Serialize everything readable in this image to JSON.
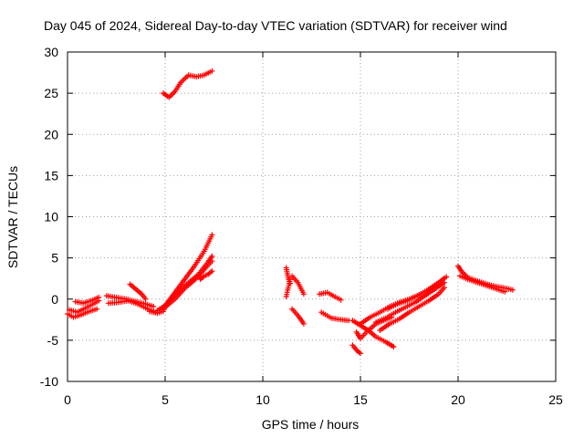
{
  "chart_data": {
    "type": "scatter",
    "title": "Day 045 of 2024, Sidereal Day-to-day VTEC variation (SDTVAR) for receiver wind",
    "xlabel": "GPS time / hours",
    "ylabel": "SDTVAR / TECUs",
    "xlim": [
      0,
      25
    ],
    "ylim": [
      -10,
      30
    ],
    "xticks": [
      0,
      5,
      10,
      15,
      20,
      25
    ],
    "yticks": [
      -10,
      -5,
      0,
      5,
      10,
      15,
      20,
      25,
      30
    ],
    "grid": true,
    "marker": "+",
    "color": "#ff0000",
    "segments": [
      {
        "name": "early-1",
        "x": [
          0.0,
          0.3,
          0.6,
          1.0,
          1.5
        ],
        "y": [
          -1.8,
          -2.2,
          -2.0,
          -1.6,
          -1.2
        ]
      },
      {
        "name": "early-2",
        "x": [
          0.1,
          0.5,
          1.0,
          1.6
        ],
        "y": [
          -1.3,
          -1.6,
          -1.0,
          -0.2
        ]
      },
      {
        "name": "early-3",
        "x": [
          0.4,
          0.8,
          1.2,
          1.6
        ],
        "y": [
          -0.3,
          -0.5,
          -0.2,
          0.2
        ]
      },
      {
        "name": "morning-1",
        "x": [
          2.0,
          2.5,
          3.0,
          3.5,
          4.0,
          4.4
        ],
        "y": [
          0.4,
          0.2,
          0.0,
          -0.3,
          -0.6,
          -0.9
        ]
      },
      {
        "name": "morning-2",
        "x": [
          2.1,
          2.6,
          3.1,
          3.6,
          4.1,
          4.6
        ],
        "y": [
          -0.5,
          -0.4,
          -0.2,
          -0.6,
          -1.2,
          -1.7
        ]
      },
      {
        "name": "morning-3",
        "x": [
          3.2,
          3.5,
          3.8,
          4.0
        ],
        "y": [
          1.8,
          1.2,
          0.6,
          0.0
        ]
      },
      {
        "name": "morning-4",
        "x": [
          4.2,
          4.6,
          4.9,
          5.0
        ],
        "y": [
          -1.5,
          -1.7,
          -1.5,
          -1.0
        ]
      },
      {
        "name": "rise-1",
        "x": [
          4.6,
          5.0,
          5.5,
          6.0,
          6.5,
          7.0,
          7.4
        ],
        "y": [
          -1.4,
          -0.8,
          0.8,
          2.4,
          4.0,
          5.8,
          7.8
        ]
      },
      {
        "name": "rise-2",
        "x": [
          4.8,
          5.2,
          5.7,
          6.2,
          6.7,
          7.2,
          7.4
        ],
        "y": [
          -1.2,
          -0.3,
          1.0,
          2.0,
          3.0,
          4.5,
          5.2
        ]
      },
      {
        "name": "rise-3",
        "x": [
          5.0,
          5.5,
          6.0,
          6.5,
          7.0,
          7.4
        ],
        "y": [
          -1.0,
          0.0,
          1.3,
          2.3,
          3.6,
          4.6
        ]
      },
      {
        "name": "rise-4",
        "x": [
          6.8,
          7.0,
          7.2,
          7.4
        ],
        "y": [
          2.4,
          2.8,
          3.0,
          3.4
        ]
      },
      {
        "name": "high-arc",
        "x": [
          4.9,
          5.2,
          5.5,
          5.8,
          6.2,
          6.6,
          7.0,
          7.4
        ],
        "y": [
          25.0,
          24.5,
          25.2,
          26.3,
          27.2,
          27.0,
          27.2,
          27.7
        ]
      },
      {
        "name": "midday-1",
        "x": [
          11.2,
          11.3,
          11.4
        ],
        "y": [
          3.8,
          2.6,
          1.9
        ]
      },
      {
        "name": "midday-2",
        "x": [
          11.2,
          11.4
        ],
        "y": [
          0.3,
          2.4
        ]
      },
      {
        "name": "midday-3",
        "x": [
          11.5,
          11.8,
          12.1
        ],
        "y": [
          2.8,
          2.0,
          0.6
        ]
      },
      {
        "name": "midday-4",
        "x": [
          11.5,
          11.8,
          12.1
        ],
        "y": [
          -1.2,
          -2.0,
          -3.0
        ]
      },
      {
        "name": "midday-5",
        "x": [
          12.9,
          13.3,
          13.6,
          14.0
        ],
        "y": [
          0.6,
          0.8,
          0.4,
          -0.1
        ]
      },
      {
        "name": "midday-6",
        "x": [
          13.0,
          13.5,
          14.0,
          14.4
        ],
        "y": [
          -1.6,
          -2.3,
          -2.5,
          -2.6
        ]
      },
      {
        "name": "afternoon-1",
        "x": [
          14.6,
          14.8,
          15.0
        ],
        "y": [
          -5.6,
          -6.2,
          -6.6
        ]
      },
      {
        "name": "afternoon-2",
        "x": [
          14.6,
          15.0,
          15.4,
          15.8,
          16.3,
          16.7
        ],
        "y": [
          -2.6,
          -3.2,
          -3.8,
          -4.6,
          -5.2,
          -5.8
        ]
      },
      {
        "name": "afternoon-3",
        "x": [
          14.8,
          15.0,
          15.4,
          15.8,
          16.2,
          16.6
        ],
        "y": [
          -4.0,
          -4.8,
          -3.8,
          -3.0,
          -2.6,
          -2.2
        ]
      },
      {
        "name": "afternoon-4",
        "x": [
          15.0,
          15.5,
          16.0,
          16.5,
          17.0,
          17.5,
          18.0,
          18.5,
          19.0,
          19.4
        ],
        "y": [
          -3.0,
          -2.2,
          -1.6,
          -0.9,
          -0.4,
          0.0,
          0.5,
          1.2,
          2.0,
          2.7
        ]
      },
      {
        "name": "afternoon-5",
        "x": [
          15.8,
          16.3,
          16.8,
          17.3,
          17.8,
          18.3,
          18.8,
          19.3
        ],
        "y": [
          -2.8,
          -2.3,
          -1.6,
          -1.0,
          -0.4,
          0.4,
          1.2,
          2.0
        ]
      },
      {
        "name": "afternoon-6",
        "x": [
          16.0,
          16.5,
          17.0,
          17.5,
          18.0,
          18.5,
          19.0,
          19.3
        ],
        "y": [
          -3.8,
          -3.0,
          -2.4,
          -1.6,
          -0.9,
          -0.2,
          0.6,
          1.4
        ]
      },
      {
        "name": "afternoon-7",
        "x": [
          16.4,
          16.9,
          17.4,
          17.9,
          18.4,
          18.9
        ],
        "y": [
          -1.2,
          -0.6,
          -0.2,
          0.4,
          1.0,
          1.6
        ]
      },
      {
        "name": "evening-1",
        "x": [
          20.0,
          20.2,
          20.5,
          21.0,
          21.5,
          22.0,
          22.5,
          22.8
        ],
        "y": [
          4.0,
          3.3,
          2.6,
          2.2,
          1.8,
          1.5,
          1.3,
          1.1
        ]
      },
      {
        "name": "evening-2",
        "x": [
          20.1,
          20.5,
          21.0,
          21.5,
          22.0,
          22.4
        ],
        "y": [
          2.8,
          2.4,
          2.0,
          1.6,
          1.2,
          0.9
        ]
      }
    ]
  }
}
